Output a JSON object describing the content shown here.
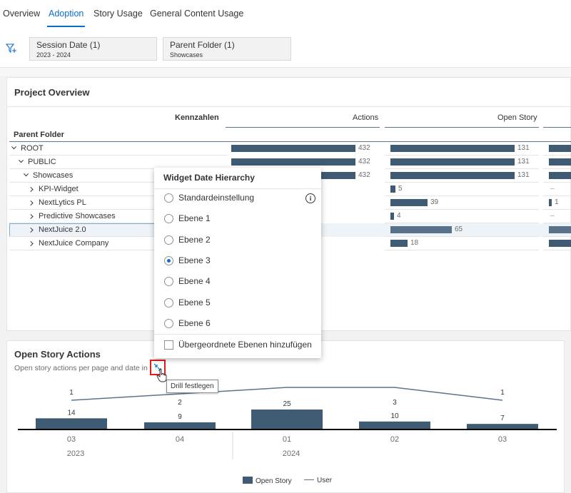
{
  "tabs": [
    {
      "label": "Overview"
    },
    {
      "label": "Adoption"
    },
    {
      "label": "Story Usage"
    },
    {
      "label": "General Content Usage"
    }
  ],
  "filters": [
    {
      "title": "Session Date (1)",
      "value": "2023 - 2024"
    },
    {
      "title": "Parent Folder (1)",
      "value": "Showcases"
    }
  ],
  "project_overview": {
    "title": "Project Overview",
    "row_header": "Kennzahlen",
    "dim_header": "Parent Folder",
    "col_actions": "Actions",
    "col_open_story": "Open Story",
    "rows": [
      {
        "label": "ROOT",
        "actions": 432,
        "open_story": 131
      },
      {
        "label": "PUBLIC",
        "actions": 432,
        "open_story": 131
      },
      {
        "label": "Showcases",
        "actions": 432,
        "open_story": 131
      },
      {
        "label": "KPI-Widget",
        "open_story": 5,
        "third": "–"
      },
      {
        "label": "NextLytics PL",
        "open_story": 39,
        "third": "1"
      },
      {
        "label": "Predictive Showcases",
        "open_story": 4,
        "third": "–"
      },
      {
        "label": "NextJuice 2.0",
        "open_story": 65
      },
      {
        "label": "NextJuice Company",
        "open_story": 18
      }
    ]
  },
  "popover": {
    "title": "Widget Date Hierarchy",
    "options": [
      {
        "label": "Standardeinstellung",
        "selected": false
      },
      {
        "label": "Ebene 1",
        "selected": false
      },
      {
        "label": "Ebene 2",
        "selected": false
      },
      {
        "label": "Ebene 3",
        "selected": true
      },
      {
        "label": "Ebene 4",
        "selected": false
      },
      {
        "label": "Ebene 5",
        "selected": false
      },
      {
        "label": "Ebene 6",
        "selected": false
      }
    ],
    "checkbox_label": "Übergeordnete Ebenen hinzufügen",
    "info_icon": "i"
  },
  "open_story_actions": {
    "title": "Open Story Actions",
    "subtitle": "Open story actions per page and date in k",
    "tooltip": "Drill festlegen"
  },
  "chart_data": {
    "type": "bar",
    "categories": [
      "03",
      "04",
      "01",
      "02",
      "03"
    ],
    "groups": [
      {
        "label": "2023",
        "span": [
          0,
          1
        ]
      },
      {
        "label": "2024",
        "span": [
          2,
          4
        ]
      }
    ],
    "series": [
      {
        "name": "Open Story",
        "values": [
          14,
          9,
          25,
          10,
          7
        ],
        "color": "#3e5b73"
      },
      {
        "name": "User",
        "type": "line",
        "values": [
          1,
          2,
          3,
          3,
          1
        ],
        "labels": [
          "1",
          "2",
          "",
          "3",
          "1"
        ],
        "color": "#5b738b"
      }
    ]
  }
}
